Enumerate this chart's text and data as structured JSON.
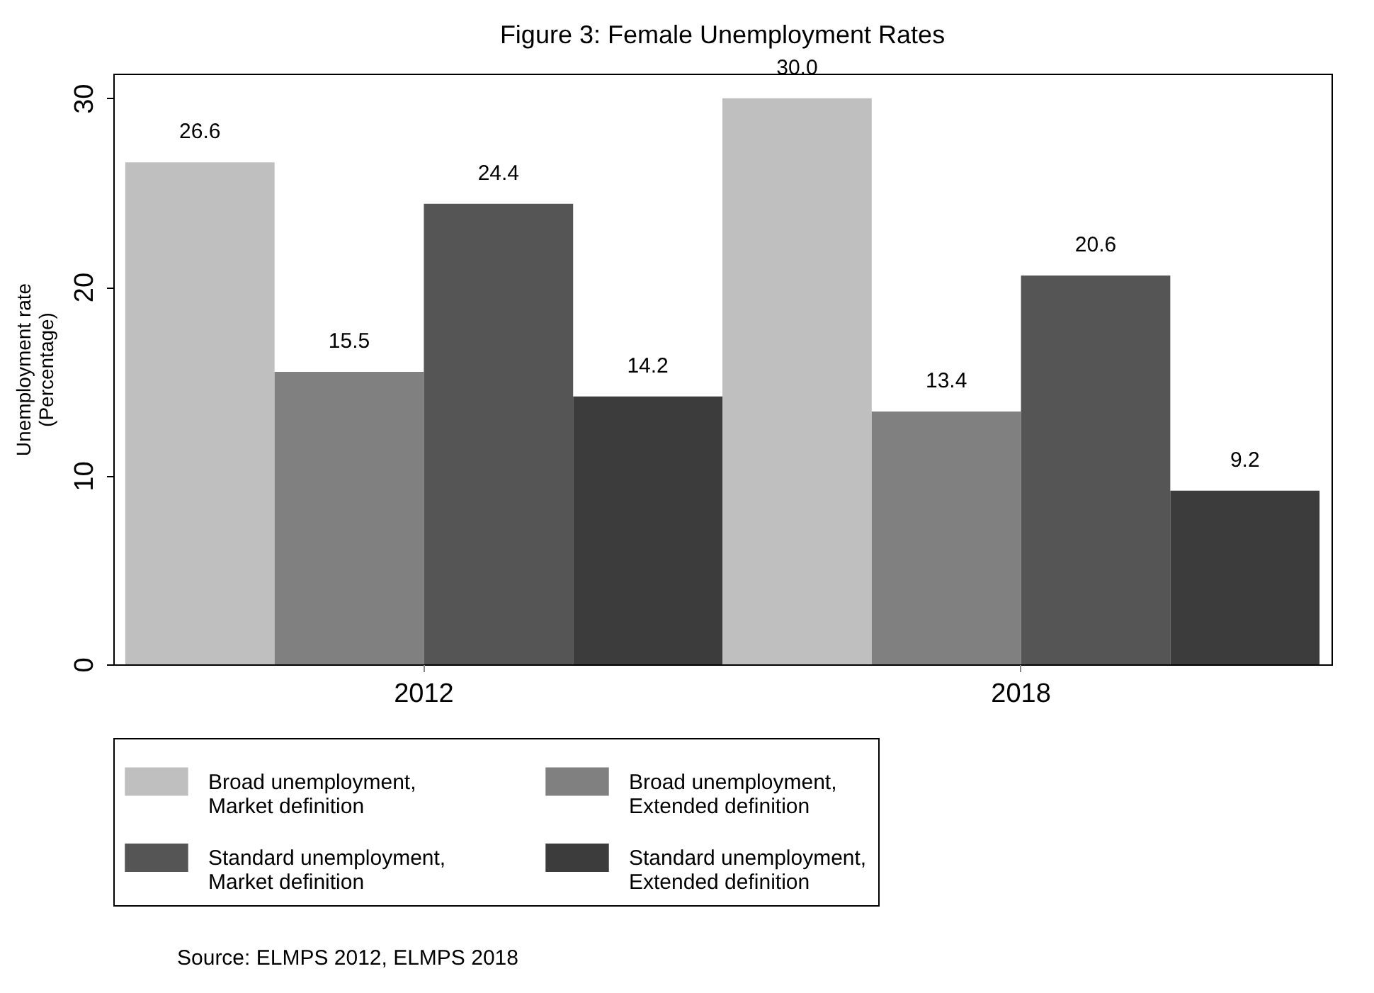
{
  "chart_data": {
    "type": "bar",
    "title": "Figure 3: Female Unemployment Rates",
    "ylabel": "Unemployment rate\n(Percentage)",
    "categories": [
      "2012",
      "2018"
    ],
    "series": [
      {
        "name": "Broad unemployment,\nMarket definition",
        "color": "#bfbfbf",
        "values": [
          26.6,
          30.0
        ]
      },
      {
        "name": "Broad unemployment,\nExtended definition",
        "color": "#808080",
        "values": [
          15.5,
          13.4
        ]
      },
      {
        "name": "Standard unemployment,\nMarket definition",
        "color": "#555555",
        "values": [
          24.4,
          20.6
        ]
      },
      {
        "name": "Standard unemployment,\nExtended definition",
        "color": "#3c3c3c",
        "values": [
          14.2,
          9.2
        ]
      }
    ],
    "ylim": [
      0,
      31.3
    ],
    "yticks": [
      0,
      10,
      20,
      30
    ],
    "grid": false,
    "legend": "bottom",
    "value_labels": [
      [
        "26.6",
        "30.0"
      ],
      [
        "15.5",
        "13.4"
      ],
      [
        "24.4",
        "20.6"
      ],
      [
        "14.2",
        "9.2"
      ]
    ],
    "annotations": [
      "Source: ELMPS 2012, ELMPS 2018"
    ]
  }
}
